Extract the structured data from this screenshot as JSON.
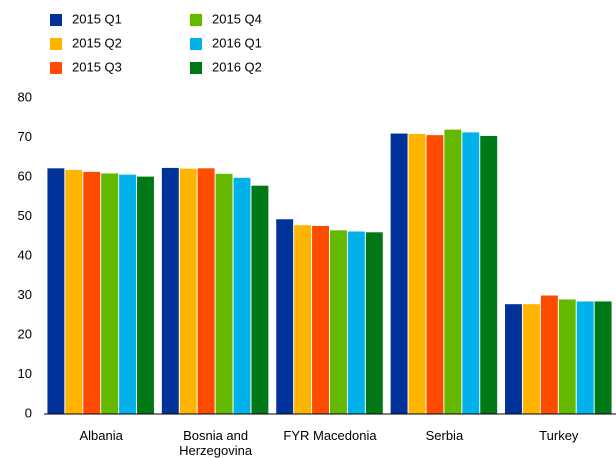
{
  "chart_data": {
    "type": "bar",
    "categories": [
      "Albania",
      "Bosnia and Herzegovina",
      "FYR Macedonia",
      "Serbia",
      "Turkey"
    ],
    "series": [
      {
        "name": "2015 Q1",
        "color": "#003299",
        "values": [
          62.2,
          62.3,
          49.3,
          71.0,
          27.8
        ]
      },
      {
        "name": "2015 Q2",
        "color": "#ffb400",
        "values": [
          61.8,
          62.1,
          47.8,
          70.9,
          27.8
        ]
      },
      {
        "name": "2015 Q3",
        "color": "#ff4b00",
        "values": [
          61.3,
          62.2,
          47.6,
          70.6,
          30.0
        ]
      },
      {
        "name": "2015 Q4",
        "color": "#65b800",
        "values": [
          60.9,
          60.8,
          46.5,
          72.0,
          29.0
        ]
      },
      {
        "name": "2016 Q1",
        "color": "#00b1ea",
        "values": [
          60.6,
          59.8,
          46.2,
          71.3,
          28.5
        ]
      },
      {
        "name": "2016 Q2",
        "color": "#007816",
        "values": [
          60.1,
          57.8,
          46.0,
          70.4,
          28.5
        ]
      }
    ],
    "ylim": [
      0,
      80
    ],
    "yticks": [
      0,
      10,
      20,
      30,
      40,
      50,
      60,
      70,
      80
    ],
    "grid": false
  }
}
